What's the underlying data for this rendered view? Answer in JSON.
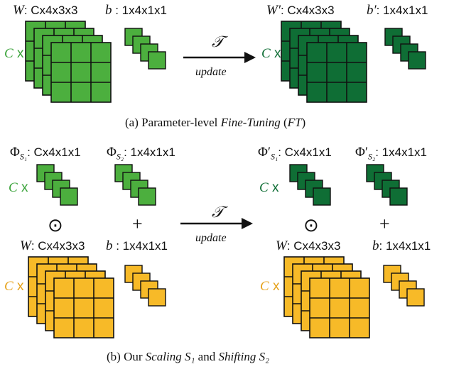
{
  "colors": {
    "light_green": "#4caf3e",
    "dark_green": "#0f6e35",
    "yellow": "#f7ba28",
    "grid_line": "#111111",
    "c_green": "#3aa33a",
    "c_yellow": "#e6a21b"
  },
  "top": {
    "w_label": {
      "sym": "W",
      "dims": ": Cx4x3x3"
    },
    "b_label": {
      "sym": "b",
      "dims": " : 1x4x1x1"
    },
    "w_prime_label": {
      "sym": "W′",
      "dims": ": Cx4x3x3"
    },
    "b_prime_label": {
      "sym": "b′",
      "dims": ": 1x4x1x1"
    },
    "c_left": {
      "c": "C",
      "x": " x"
    },
    "c_right": {
      "c": "C",
      "x": " x"
    },
    "arrow_top": "𝒯",
    "arrow_bottom": "update",
    "caption": {
      "prefix": "(a) Parameter-level ",
      "em1": "Fine-Tuning",
      "mid": " (",
      "em2": "FT",
      "suffix": ")"
    }
  },
  "bottom": {
    "phi1_label": {
      "sym": "Φ",
      "sub": "S₁",
      "dims": ": Cx4x1x1"
    },
    "phi2_label": {
      "sym": "Φ",
      "sub": "S₂",
      "dims": ": 1x4x1x1"
    },
    "phi1_prime_label": {
      "sym": "Φ′",
      "sub": "S₁",
      "dims": ": Cx4x1x1"
    },
    "phi2_prime_label": {
      "sym": "Φ′",
      "sub": "S₂",
      "dims": ": 1x4x1x1"
    },
    "c_green_left": {
      "c": "C",
      "x": " x"
    },
    "c_green_right": {
      "c": "C",
      "x": " x"
    },
    "c_yellow_left": {
      "c": "C",
      "x": " x"
    },
    "c_yellow_right": {
      "c": "C",
      "x": " x"
    },
    "odot": "⊙",
    "plus": "+",
    "w_label": {
      "sym": "W",
      "dims": ": Cx4x3x3"
    },
    "b_label": {
      "sym": "b",
      "dims": " : 1x4x1x1"
    },
    "w_label_right": {
      "sym": "W",
      "dims": ": Cx4x3x3"
    },
    "b_label_right": {
      "sym": "b",
      "dims": ": 1x4x1x1"
    },
    "arrow_top": "𝒯",
    "arrow_bottom": "update",
    "caption": {
      "prefix": "(b) Our ",
      "em1": "Scaling S₁",
      "mid": " and ",
      "em2": "Shifting S₂",
      "suffix": ""
    }
  }
}
